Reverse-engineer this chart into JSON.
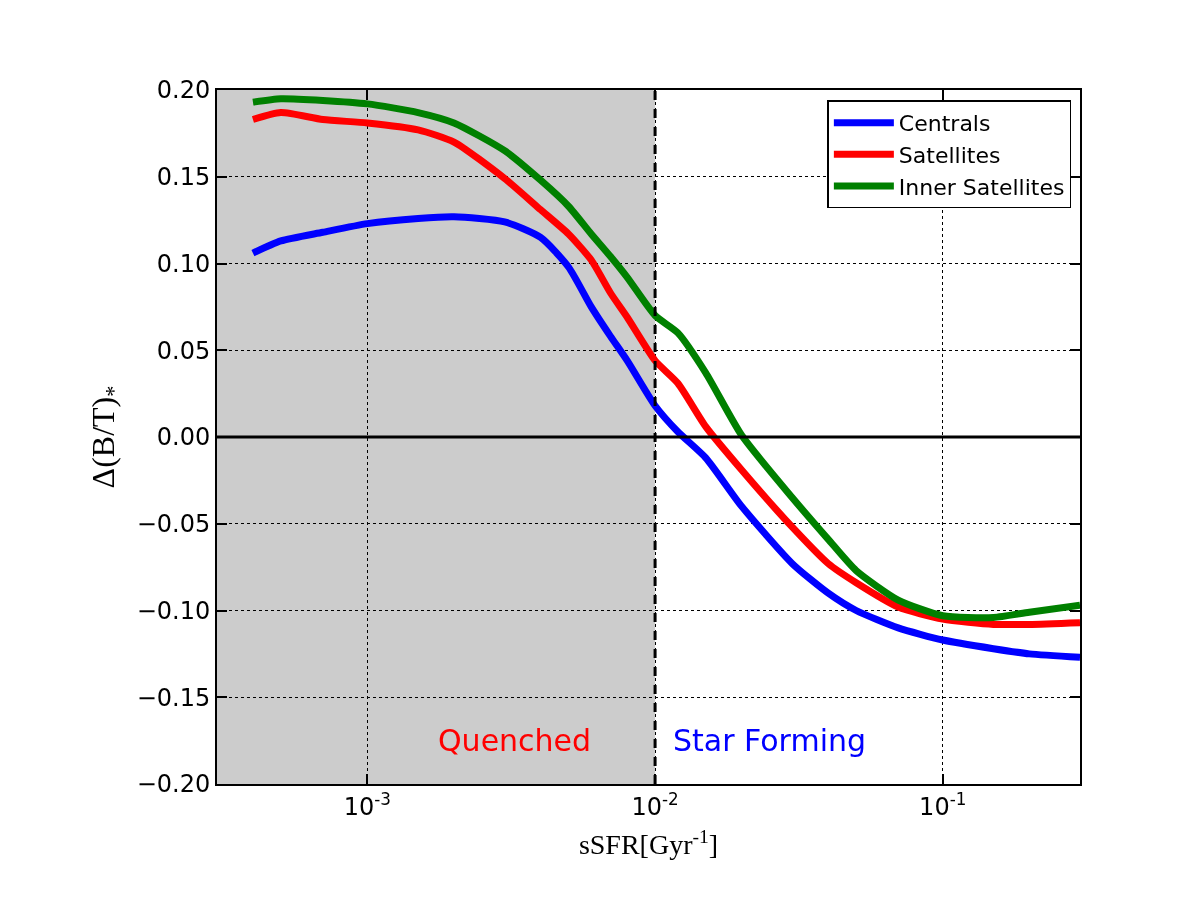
{
  "chart_data": {
    "type": "line",
    "xlabel": "sSFR[Gyr$^{-1}$]",
    "ylabel": "Δ(B/T)$_{*}$",
    "x": [
      0.0004,
      0.0005,
      0.0007,
      0.001,
      0.0015,
      0.002,
      0.003,
      0.004,
      0.005,
      0.006,
      0.007,
      0.008,
      0.01,
      0.012,
      0.015,
      0.02,
      0.03,
      0.04,
      0.05,
      0.07,
      0.1,
      0.15,
      0.2,
      0.3
    ],
    "series": [
      {
        "name": "Centrals",
        "color": "#0000ff",
        "values": [
          0.106,
          0.113,
          0.118,
          0.123,
          0.126,
          0.127,
          0.124,
          0.115,
          0.098,
          0.075,
          0.058,
          0.044,
          0.018,
          0.003,
          -0.012,
          -0.04,
          -0.073,
          -0.09,
          -0.1,
          -0.11,
          -0.117,
          -0.122,
          -0.125,
          -0.127
        ]
      },
      {
        "name": "Satellites",
        "color": "#ff0000",
        "values": [
          0.183,
          0.187,
          0.183,
          0.181,
          0.177,
          0.17,
          0.149,
          0.131,
          0.117,
          0.102,
          0.083,
          0.069,
          0.044,
          0.031,
          0.006,
          -0.019,
          -0.052,
          -0.073,
          -0.084,
          -0.098,
          -0.105,
          -0.108,
          -0.108,
          -0.107
        ]
      },
      {
        "name": "Inner Satellites",
        "color": "#008000",
        "values": [
          0.193,
          0.195,
          0.194,
          0.192,
          0.187,
          0.181,
          0.165,
          0.148,
          0.133,
          0.117,
          0.104,
          0.092,
          0.07,
          0.06,
          0.037,
          0.001,
          -0.035,
          -0.059,
          -0.077,
          -0.094,
          -0.103,
          -0.104,
          -0.101,
          -0.097
        ]
      }
    ],
    "log": "x",
    "xlim": [
      0.0003,
      0.3
    ],
    "xticks": [
      {
        "value": 0.001,
        "label": "10$^{-3}$"
      },
      {
        "value": 0.01,
        "label": "10$^{-2}$"
      },
      {
        "value": 0.1,
        "label": "10$^{-1}$"
      }
    ],
    "ylim": [
      -0.2,
      0.2
    ],
    "yticks": [
      {
        "value": -0.2,
        "label": "−0.20"
      },
      {
        "value": -0.15,
        "label": "−0.15"
      },
      {
        "value": -0.1,
        "label": "−0.10"
      },
      {
        "value": -0.05,
        "label": "−0.05"
      },
      {
        "value": 0,
        "label": "0.00"
      },
      {
        "value": 0.05,
        "label": "0.05"
      },
      {
        "value": 0.1,
        "label": "0.10"
      },
      {
        "value": 0.15,
        "label": "0.15"
      },
      {
        "value": 0.2,
        "label": "0.20"
      }
    ],
    "grid": true,
    "legend": "top right",
    "line_style": "solid",
    "marker": "none",
    "bands": [
      {
        "axis": "x",
        "from": 0.0003,
        "to": 0.01,
        "color": "#cccccc"
      }
    ],
    "ref_lines": [
      {
        "axis": "x",
        "value": 0.01,
        "color": "#000000",
        "line_style": "dashed"
      },
      {
        "axis": "y",
        "value": 0,
        "color": "#000000",
        "line_style": "solid"
      }
    ],
    "annotations": [
      "Quenched",
      "Star Forming"
    ]
  }
}
